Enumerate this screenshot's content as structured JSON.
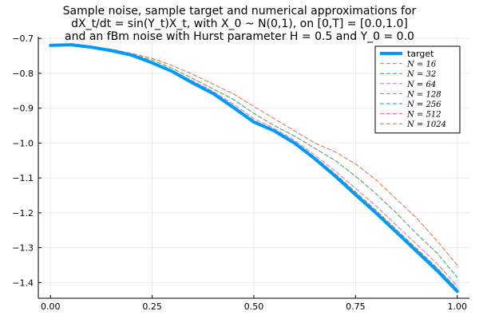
{
  "chart_data": {
    "type": "line",
    "title_lines": [
      "Sample noise, sample target and numerical approximations for",
      "dX_t/dt = sin(Y_t)X_t, with X_0 ~ N(0,1), on [0,T] = [0.0,1.0]",
      "and an fBm noise with Hurst parameter H = 0.5 and Y_0 = 0.0"
    ],
    "xlabel": "",
    "ylabel": "",
    "xlim": [
      -0.03,
      1.03
    ],
    "ylim": [
      -1.445,
      -0.695
    ],
    "xticks": [
      0.0,
      0.25,
      0.5,
      0.75,
      1.0
    ],
    "xtick_labels": [
      "0.00",
      "0.25",
      "0.50",
      "0.75",
      "1.00"
    ],
    "yticks": [
      -1.4,
      -1.3,
      -1.2,
      -1.1,
      -1.0,
      -0.9,
      -0.8,
      -0.7
    ],
    "ytick_labels": [
      "−1.4",
      "−1.3",
      "−1.2",
      "−1.1",
      "−1.0",
      "−0.9",
      "−0.8",
      "−0.7"
    ],
    "grid": true,
    "legend_position": "top-right",
    "x": [
      0.0,
      0.05,
      0.1,
      0.15,
      0.2,
      0.25,
      0.3,
      0.35,
      0.4,
      0.45,
      0.5,
      0.55,
      0.6,
      0.65,
      0.7,
      0.75,
      0.8,
      0.85,
      0.9,
      0.95,
      1.0
    ],
    "series": [
      {
        "name": "target",
        "color": "#009af9",
        "style": "solid",
        "values": [
          -0.72,
          -0.718,
          -0.725,
          -0.735,
          -0.748,
          -0.77,
          -0.795,
          -0.828,
          -0.858,
          -0.898,
          -0.94,
          -0.965,
          -1.0,
          -1.045,
          -1.095,
          -1.148,
          -1.2,
          -1.255,
          -1.31,
          -1.365,
          -1.425
        ]
      },
      {
        "name": "N = 16",
        "color": "#e26f46",
        "style": "dashed",
        "values": [
          -0.72,
          -0.719,
          -0.723,
          -0.731,
          -0.743,
          -0.757,
          -0.778,
          -0.803,
          -0.831,
          -0.859,
          -0.895,
          -0.93,
          -0.965,
          -1.0,
          -1.025,
          -1.06,
          -1.105,
          -1.16,
          -1.215,
          -1.28,
          -1.35
        ]
      },
      {
        "name": "N = 32",
        "color": "#3da44d",
        "style": "dashed",
        "values": [
          -0.72,
          -0.719,
          -0.724,
          -0.733,
          -0.745,
          -0.762,
          -0.786,
          -0.815,
          -0.845,
          -0.875,
          -0.915,
          -0.95,
          -0.98,
          -1.015,
          -1.05,
          -1.095,
          -1.145,
          -1.2,
          -1.26,
          -1.315,
          -1.385
        ]
      },
      {
        "name": "N = 64",
        "color": "#c271d2",
        "style": "dashed",
        "values": [
          -0.72,
          -0.718,
          -0.724,
          -0.734,
          -0.747,
          -0.767,
          -0.792,
          -0.822,
          -0.852,
          -0.889,
          -0.93,
          -0.958,
          -0.992,
          -1.035,
          -1.08,
          -1.13,
          -1.18,
          -1.235,
          -1.29,
          -1.345,
          -1.41
        ]
      },
      {
        "name": "N = 128",
        "color": "#ac8d18",
        "style": "dashed",
        "values": [
          -0.72,
          -0.718,
          -0.724,
          -0.734,
          -0.747,
          -0.768,
          -0.792,
          -0.825,
          -0.855,
          -0.894,
          -0.935,
          -0.962,
          -0.996,
          -1.04,
          -1.088,
          -1.14,
          -1.192,
          -1.247,
          -1.302,
          -1.357,
          -1.418
        ]
      },
      {
        "name": "N = 256",
        "color": "#00a9ad",
        "style": "dashed",
        "values": [
          -0.72,
          -0.718,
          -0.725,
          -0.735,
          -0.748,
          -0.769,
          -0.794,
          -0.827,
          -0.857,
          -0.896,
          -0.938,
          -0.964,
          -0.998,
          -1.043,
          -1.092,
          -1.145,
          -1.197,
          -1.252,
          -1.307,
          -1.362,
          -1.422
        ]
      },
      {
        "name": "N = 512",
        "color": "#ed5d92",
        "style": "dashed",
        "values": [
          -0.72,
          -0.718,
          -0.725,
          -0.735,
          -0.748,
          -0.77,
          -0.795,
          -0.828,
          -0.858,
          -0.897,
          -0.939,
          -0.965,
          -0.999,
          -1.044,
          -1.094,
          -1.147,
          -1.199,
          -1.254,
          -1.309,
          -1.364,
          -1.424
        ]
      },
      {
        "name": "N = 1024",
        "color": "#c68125",
        "style": "dashed",
        "values": [
          -0.72,
          -0.718,
          -0.725,
          -0.735,
          -0.748,
          -0.77,
          -0.795,
          -0.828,
          -0.858,
          -0.898,
          -0.94,
          -0.965,
          -1.0,
          -1.045,
          -1.095,
          -1.148,
          -1.2,
          -1.255,
          -1.31,
          -1.365,
          -1.425
        ]
      }
    ]
  }
}
